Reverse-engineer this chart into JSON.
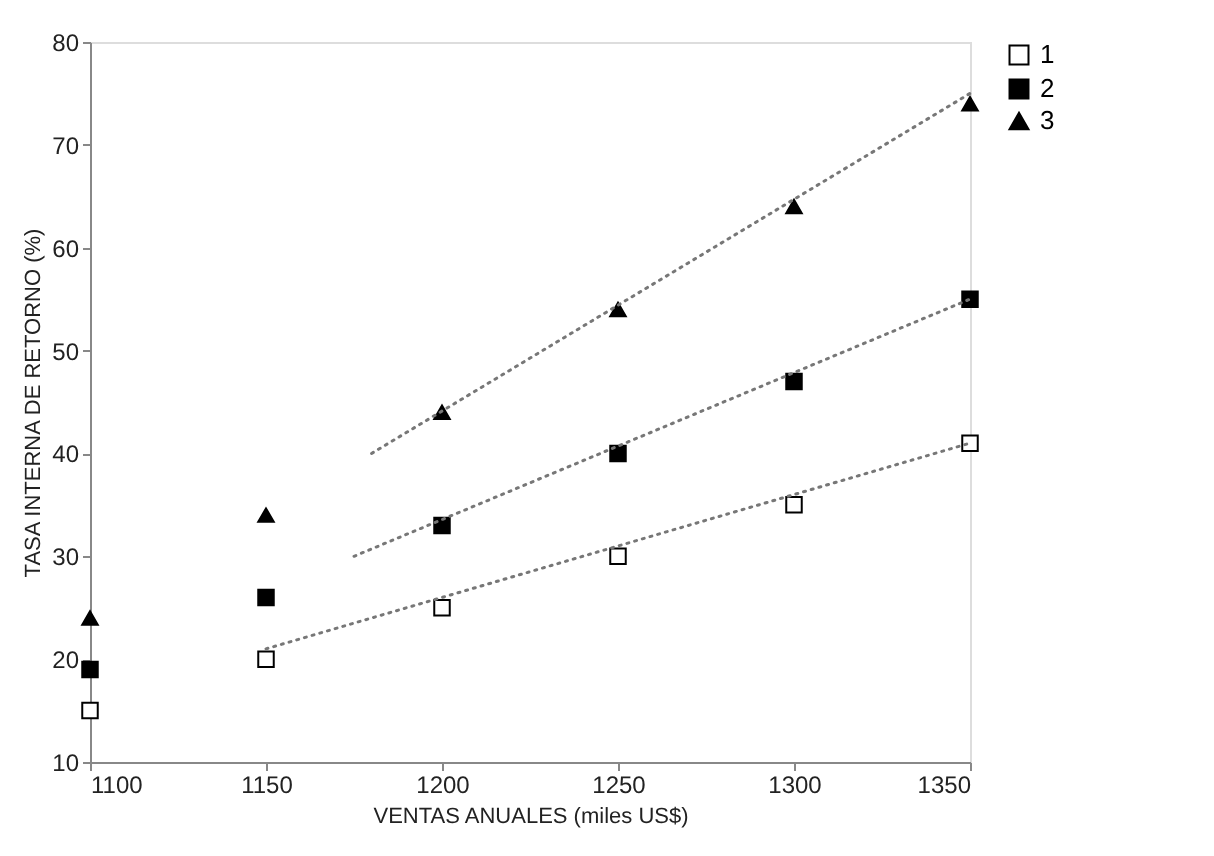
{
  "chart_data": {
    "type": "scatter",
    "xlabel": "VENTAS ANUALES (miles US$)",
    "ylabel": "TASA INTERNA DE RETORNO (%)",
    "x": [
      1100,
      1150,
      1200,
      1250,
      1300,
      1350
    ],
    "xlim": [
      1100,
      1350
    ],
    "xticks": [
      1100,
      1150,
      1200,
      1250,
      1300,
      1350
    ],
    "ylim": [
      10,
      80
    ],
    "yticks": [
      10,
      20,
      30,
      40,
      50,
      60,
      70,
      80
    ],
    "grid": false,
    "legend": "top right",
    "series": [
      {
        "name": "1",
        "color": "#ffffff",
        "marker": "square",
        "values": [
          15,
          20,
          25,
          30,
          35,
          41
        ]
      },
      {
        "name": "2",
        "color": "#000000",
        "marker": "square",
        "values": [
          19,
          26,
          33,
          40,
          47,
          55
        ]
      },
      {
        "name": "3",
        "color": "#000000",
        "marker": "triangle",
        "values": [
          24,
          34,
          44,
          54,
          64,
          74
        ]
      },
      {
        "type": "line",
        "color": "#777777",
        "line_style": "dotted",
        "marker": "none",
        "x": [
          1150,
          1350
        ],
        "values": [
          21,
          41
        ]
      },
      {
        "type": "line",
        "color": "#777777",
        "line_style": "dotted",
        "marker": "none",
        "x": [
          1175,
          1350
        ],
        "values": [
          30,
          55
        ]
      },
      {
        "type": "line",
        "color": "#777777",
        "line_style": "dotted",
        "marker": "none",
        "x": [
          1180,
          1350
        ],
        "values": [
          40,
          75
        ]
      }
    ]
  }
}
